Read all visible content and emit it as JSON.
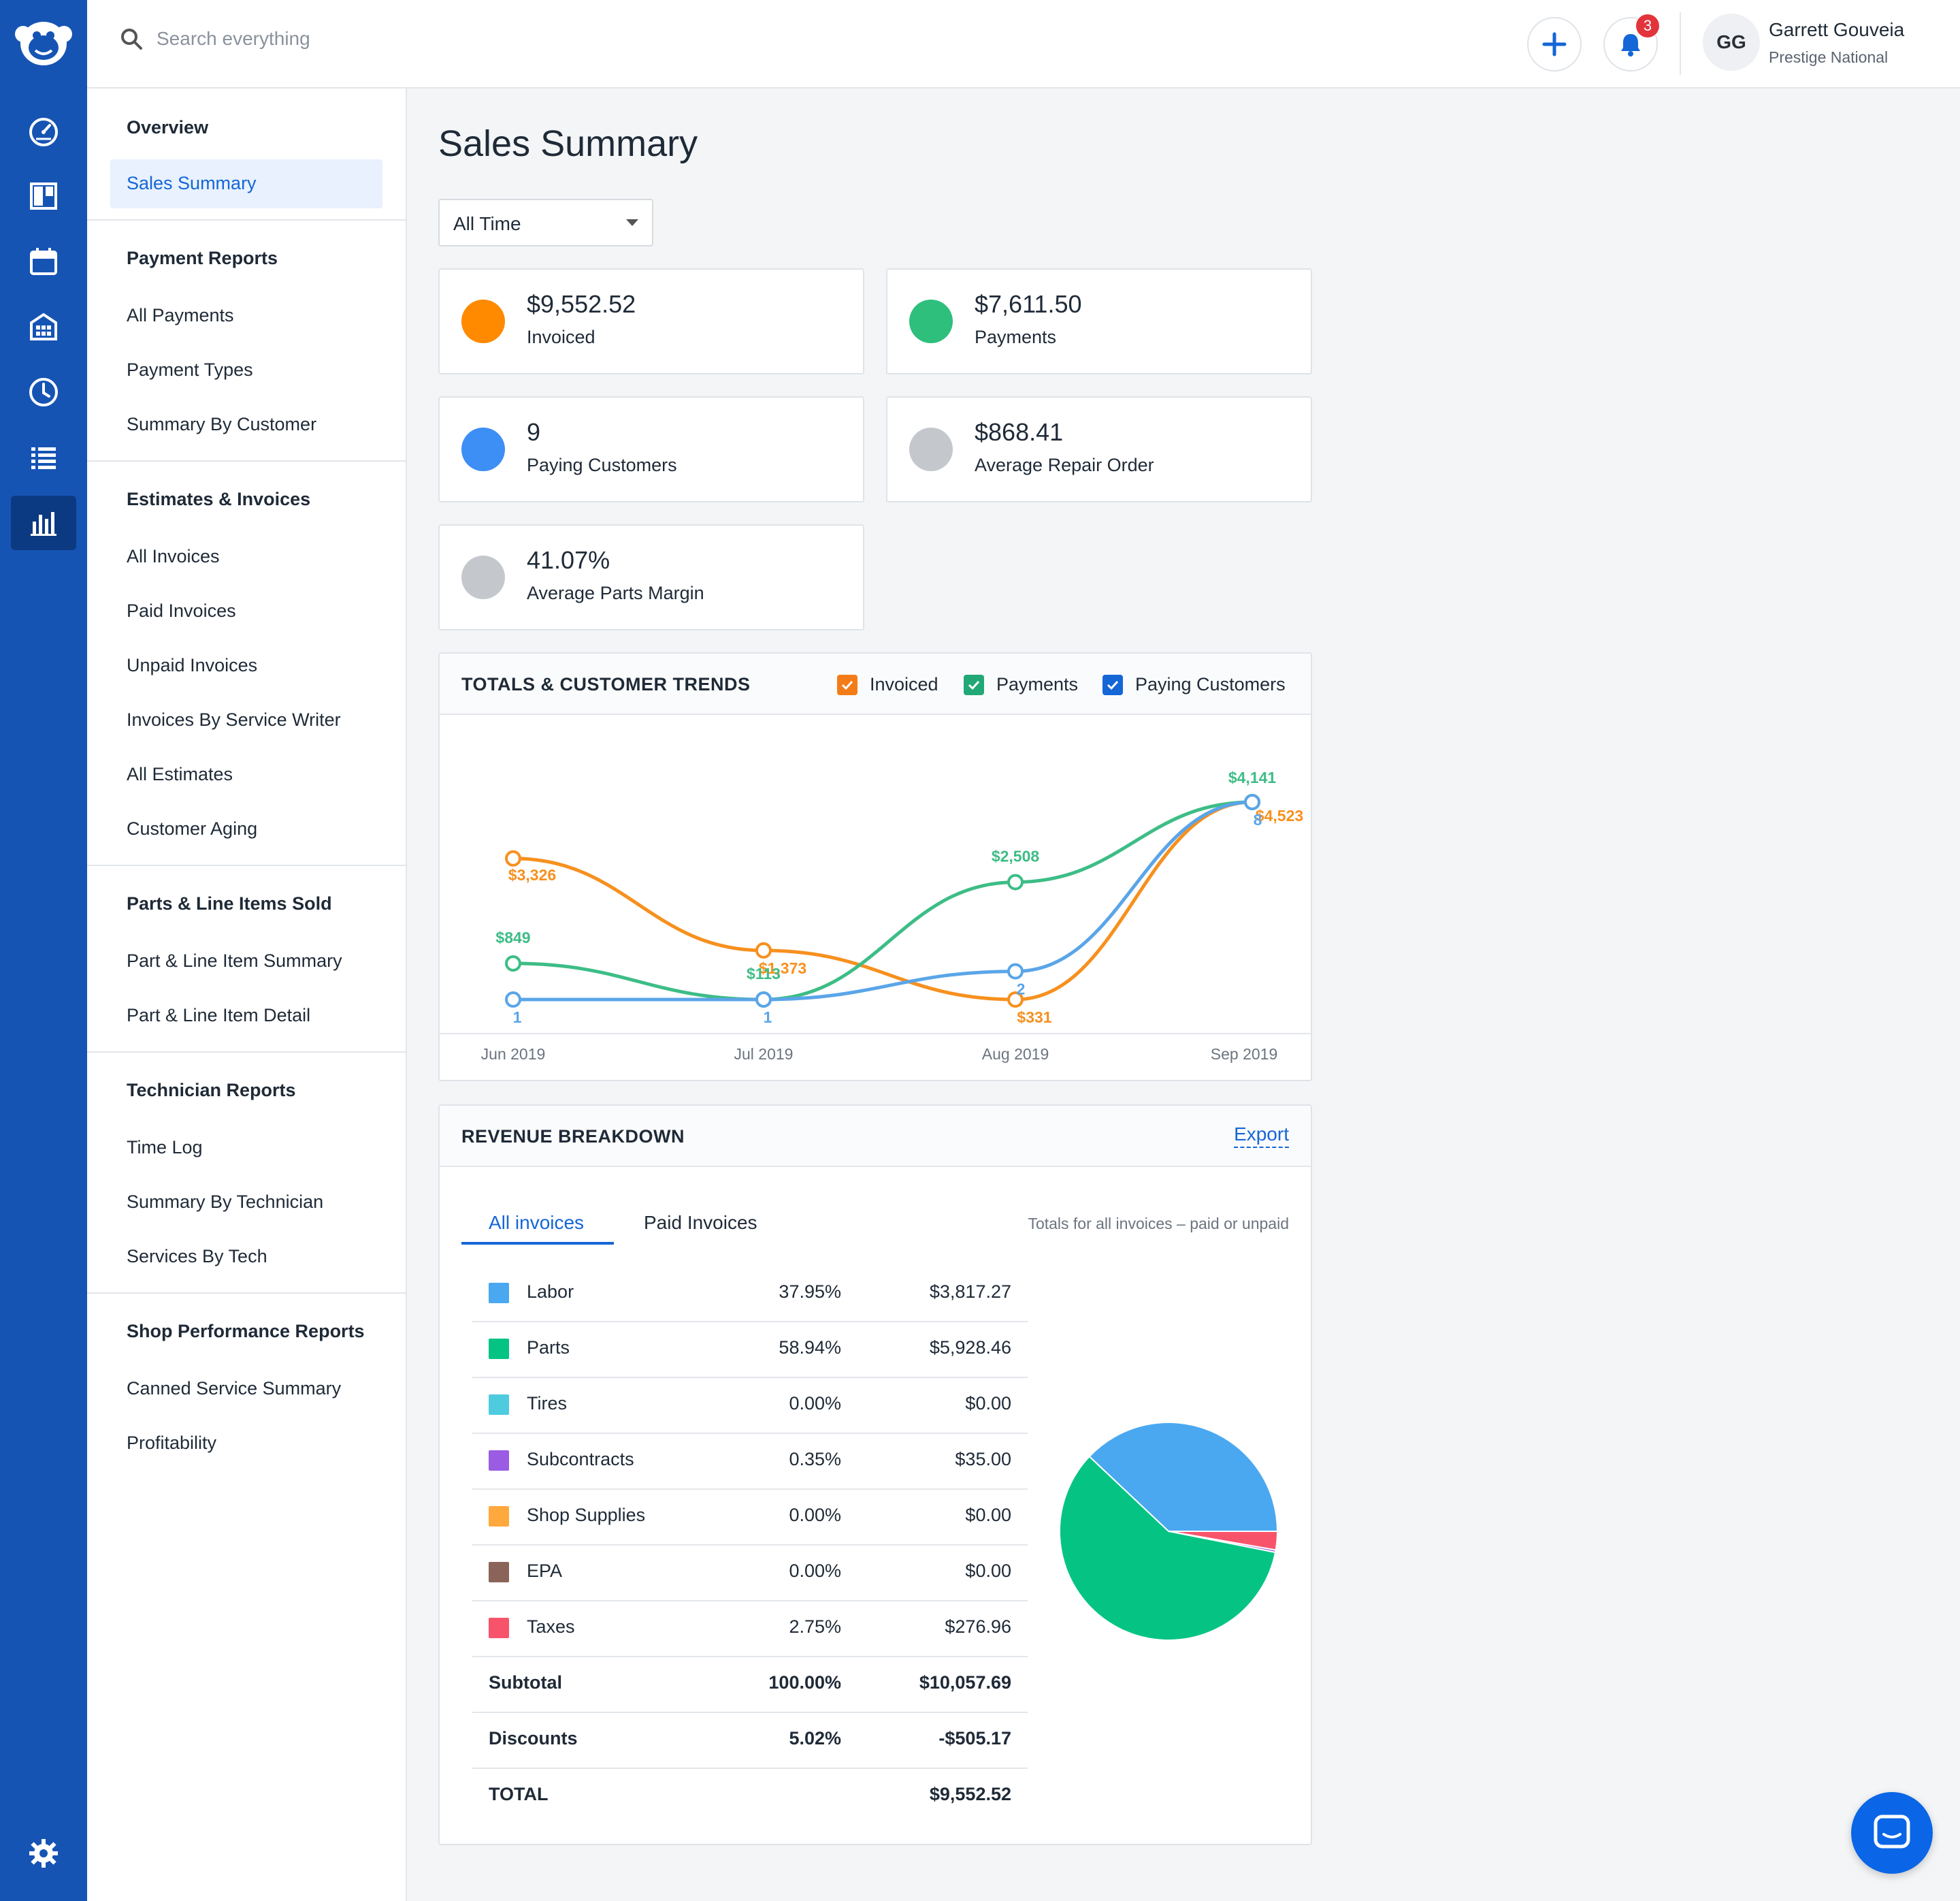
{
  "topbar": {
    "search_placeholder": "Search everything",
    "notification_count": "3",
    "user": {
      "initials": "GG",
      "name": "Garrett Gouveia",
      "org": "Prestige National"
    }
  },
  "rail": {
    "items": [
      "dashboard-gauge-icon",
      "board-icon",
      "calendar-icon",
      "building-icon",
      "clock-icon",
      "list-icon",
      "bar-chart-icon"
    ],
    "active": "bar-chart-icon",
    "bottom": "gear-icon"
  },
  "subnav": {
    "overview": "Overview",
    "active": "Sales Summary",
    "payment_reports": {
      "heading": "Payment Reports",
      "items": [
        "All Payments",
        "Payment Types",
        "Summary By Customer"
      ]
    },
    "estimates_invoices": {
      "heading": "Estimates & Invoices",
      "items": [
        "All Invoices",
        "Paid Invoices",
        "Unpaid Invoices",
        "Invoices By Service Writer",
        "All Estimates",
        "Customer Aging"
      ]
    },
    "parts_line_items": {
      "heading": "Parts & Line Items Sold",
      "items": [
        "Part & Line Item Summary",
        "Part & Line Item Detail"
      ]
    },
    "technician_reports": {
      "heading": "Technician Reports",
      "items": [
        "Time Log",
        "Summary By Technician",
        "Services By Tech"
      ]
    },
    "shop_performance": {
      "heading": "Shop Performance Reports",
      "items": [
        "Canned Service Summary",
        "Profitability"
      ]
    }
  },
  "main": {
    "title": "Sales Summary",
    "range_select": "All Time",
    "cards": [
      {
        "value": "$9,552.52",
        "label": "Invoiced",
        "color": "#ff8a00"
      },
      {
        "value": "$7,611.50",
        "label": "Payments",
        "color": "#2ebf7c"
      },
      {
        "value": "9",
        "label": "Paying Customers",
        "color": "#3d8ef5"
      },
      {
        "value": "$868.41",
        "label": "Average Repair Order",
        "color": "#c4c8cd"
      },
      {
        "value": "41.07%",
        "label": "Average Parts Margin",
        "color": "#c4c8cd"
      }
    ]
  },
  "trends": {
    "title": "TOTALS & CUSTOMER TRENDS",
    "legend": [
      {
        "label": "Invoiced",
        "color": "#f47c18"
      },
      {
        "label": "Payments",
        "color": "#22a876"
      },
      {
        "label": "Paying Customers",
        "color": "#1566d6"
      }
    ]
  },
  "chart_data": {
    "type": "line",
    "categories": [
      "Jun 2019",
      "Jul 2019",
      "Aug 2019",
      "Sep 2019"
    ],
    "series": [
      {
        "name": "Invoiced",
        "color": "#f7901e",
        "values": [
          3326,
          1373,
          331,
          4523
        ],
        "labels": [
          "$3,326",
          "$1,373",
          "$331",
          "$4,523"
        ]
      },
      {
        "name": "Payments",
        "color": "#3dbd86",
        "values": [
          849,
          113,
          2508,
          4141
        ],
        "labels": [
          "$849",
          "$113",
          "$2,508",
          "$4,141"
        ]
      },
      {
        "name": "Paying Customers",
        "color": "#5aa5e8",
        "values": [
          1,
          1,
          2,
          8
        ],
        "labels": [
          "1",
          "1",
          "2",
          "8"
        ]
      }
    ]
  },
  "revenue": {
    "title": "REVENUE BREAKDOWN",
    "export": "Export",
    "tabs": [
      "All invoices",
      "Paid Invoices"
    ],
    "note": "Totals for all invoices – paid or unpaid",
    "rows": [
      {
        "name": "Labor",
        "pct": "37.95%",
        "amount": "$3,817.27",
        "color": "#4aa8f0"
      },
      {
        "name": "Parts",
        "pct": "58.94%",
        "amount": "$5,928.46",
        "color": "#05c483"
      },
      {
        "name": "Tires",
        "pct": "0.00%",
        "amount": "$0.00",
        "color": "#4fcbe0"
      },
      {
        "name": "Subcontracts",
        "pct": "0.35%",
        "amount": "$35.00",
        "color": "#9b5ce4"
      },
      {
        "name": "Shop Supplies",
        "pct": "0.00%",
        "amount": "$0.00",
        "color": "#ffa83e"
      },
      {
        "name": "EPA",
        "pct": "0.00%",
        "amount": "$0.00",
        "color": "#8b6459"
      },
      {
        "name": "Taxes",
        "pct": "2.75%",
        "amount": "$276.96",
        "color": "#f7546c"
      }
    ],
    "subtotal": {
      "name": "Subtotal",
      "pct": "100.00%",
      "amount": "$10,057.69"
    },
    "discounts": {
      "name": "Discounts",
      "pct": "5.02%",
      "amount": "-$505.17"
    },
    "total": {
      "name": "TOTAL",
      "amount": "$9,552.52"
    },
    "pie": [
      {
        "name": "Labor",
        "value": 37.95,
        "color": "#4aa8f0"
      },
      {
        "name": "Parts",
        "value": 58.94,
        "color": "#05c483"
      },
      {
        "name": "Subcontracts",
        "value": 0.35,
        "color": "#9b5ce4"
      },
      {
        "name": "Taxes",
        "value": 2.75,
        "color": "#f7546c"
      }
    ]
  }
}
